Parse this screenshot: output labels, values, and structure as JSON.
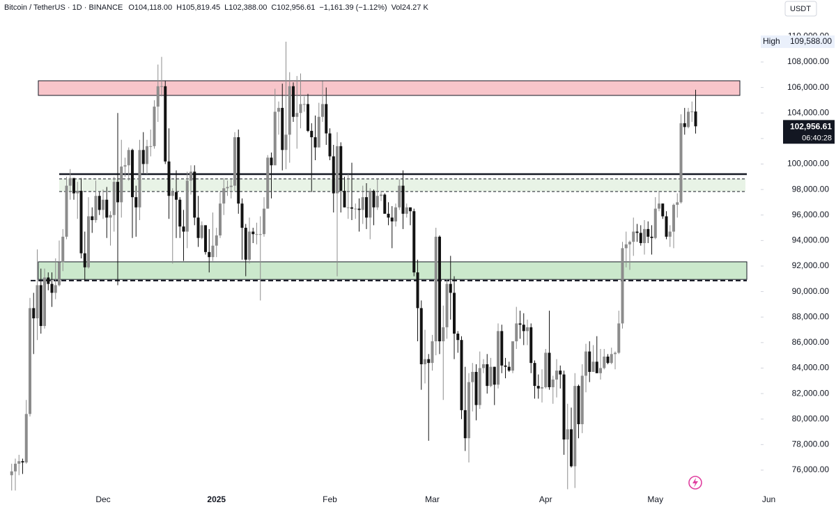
{
  "chart_data": {
    "type": "candlestick",
    "header": [
      "Bitcoin / TetherUS · 1D · BINANCE",
      "O104,118.00",
      "H105,819.45",
      "L102,388.00",
      "C102,956.61",
      "−1,161.39 (−1.12%)",
      "Vol24.27 K"
    ],
    "currency": "USDT",
    "up_color": "#8c8c8c",
    "down_color": "#131313",
    "ylim": [
      74360,
      112860
    ],
    "yticks": [
      {
        "value": 76000,
        "label": "76,000.00"
      },
      {
        "value": 78000,
        "label": "78,000.00"
      },
      {
        "value": 80000,
        "label": "80,000.00"
      },
      {
        "value": 82000,
        "label": "82,000.00"
      },
      {
        "value": 84000,
        "label": "84,000.00"
      },
      {
        "value": 86000,
        "label": "86,000.00"
      },
      {
        "value": 88000,
        "label": "88,000.00"
      },
      {
        "value": 90000,
        "label": "90,000.00"
      },
      {
        "value": 92000,
        "label": "92,000.00"
      },
      {
        "value": 94000,
        "label": "94,000.00"
      },
      {
        "value": 96000,
        "label": "96,000.00"
      },
      {
        "value": 98000,
        "label": "98,000.00"
      },
      {
        "value": 100000,
        "label": "100,000.00"
      },
      {
        "value": 102000,
        "label": "102,000.00"
      },
      {
        "value": 104000,
        "label": "104,000.00"
      },
      {
        "value": 106000,
        "label": "106,000.00"
      },
      {
        "value": 108000,
        "label": "108,000.00"
      },
      {
        "value": 110000,
        "label": "110,000.00"
      }
    ],
    "high_marker": {
      "label": "High",
      "value": 109588,
      "value_label": "109,588.00"
    },
    "last_price": {
      "value": 102956.61,
      "value_label": "102,956.61",
      "countdown": "06:40:28"
    },
    "zones": [
      {
        "low": 105379,
        "high": 106526,
        "color": "#f8c5ca"
      },
      {
        "low": 97840,
        "high": 98830,
        "color": "#e8f3e6"
      },
      {
        "low": 90950,
        "high": 92330,
        "color": "#cbe8cc"
      }
    ],
    "levels": [
      {
        "value": 99210,
        "style": "solid"
      },
      {
        "value": 98830,
        "style": "dashed"
      },
      {
        "value": 97840,
        "style": "dashed"
      },
      {
        "value": 90856,
        "style": "dashed"
      }
    ],
    "categories": [
      null,
      null,
      null,
      null,
      null,
      null,
      null,
      null,
      null,
      null,
      null,
      null,
      null,
      null,
      null,
      null,
      null,
      null,
      null,
      null,
      null,
      null,
      null,
      null,
      null,
      "Dec",
      null,
      null,
      null,
      null,
      null,
      null,
      null,
      null,
      null,
      null,
      null,
      null,
      null,
      null,
      null,
      null,
      null,
      null,
      null,
      null,
      null,
      null,
      null,
      null,
      null,
      null,
      null,
      null,
      null,
      null,
      "2025",
      null,
      null,
      null,
      null,
      null,
      null,
      null,
      null,
      null,
      null,
      null,
      null,
      null,
      null,
      null,
      null,
      null,
      null,
      null,
      null,
      null,
      null,
      null,
      null,
      null,
      null,
      null,
      null,
      null,
      null,
      "Feb",
      null,
      null,
      null,
      null,
      null,
      null,
      null,
      null,
      null,
      null,
      null,
      null,
      null,
      null,
      null,
      null,
      null,
      null,
      null,
      null,
      null,
      null,
      null,
      null,
      null,
      null,
      null,
      "Mar",
      null,
      null,
      null,
      null,
      null,
      null,
      null,
      null,
      null,
      null,
      null,
      null,
      null,
      null,
      null,
      null,
      null,
      null,
      null,
      null,
      null,
      null,
      null,
      null,
      null,
      null,
      null,
      null,
      null,
      null,
      "Apr",
      null,
      null,
      null,
      null,
      null,
      null,
      null,
      null,
      null,
      null,
      null,
      null,
      null,
      null,
      null,
      null,
      null,
      null,
      null,
      null,
      null,
      null,
      null,
      null,
      null,
      null,
      null,
      null,
      null,
      "May",
      null,
      null,
      null,
      null,
      null,
      null,
      null,
      null,
      null,
      null,
      null,
      null,
      null,
      null,
      null,
      null,
      null,
      null,
      null,
      null,
      null,
      null,
      null,
      null,
      null,
      null,
      null,
      null,
      null,
      null,
      "Jun"
    ],
    "open": [
      75600,
      75900,
      76500,
      76700,
      76600,
      80400,
      88700,
      87900,
      90500,
      87300,
      91100,
      90600,
      89900,
      90500,
      92300,
      94300,
      98300,
      98900,
      97700,
      97900,
      93000,
      91900,
      95900,
      95600,
      97500,
      96400,
      97200,
      95800,
      96000,
      98600,
      97000,
      99800,
      99900,
      101100,
      97400,
      96600,
      101100,
      100000,
      101400,
      101400,
      104500,
      106100,
      106100,
      100200,
      97500,
      97800,
      97200,
      95100,
      94700,
      98700,
      99400,
      95800,
      94200,
      95200,
      93100,
      92700,
      93600,
      94400,
      96900,
      98100,
      98200,
      98300,
      102100,
      96900,
      95000,
      92500,
      94700,
      94500,
      94500,
      94500,
      96500,
      100500,
      99900,
      104100,
      104400,
      101100,
      102300,
      106100,
      103700,
      104000,
      104700,
      104700,
      102600,
      102100,
      101300,
      103700,
      104700,
      102400,
      100600,
      97700,
      101400,
      97900,
      96600,
      96600,
      96500,
      96500,
      96400,
      97400,
      95800,
      97900,
      96600,
      97500,
      97600,
      96100,
      95800,
      95500,
      96600,
      98300,
      96100,
      96600,
      96300,
      91500,
      88700,
      84300,
      84700,
      84400,
      86100,
      94300,
      86100,
      87200,
      90600,
      89900,
      86700,
      86200,
      80700,
      78500,
      82900,
      83700,
      81100,
      84000,
      84300,
      82600,
      84100,
      82700,
      86900,
      84200,
      84100,
      83800,
      86100,
      87500,
      87400,
      86900,
      87200,
      84400,
      82600,
      82400,
      82500,
      85200,
      82500,
      83100,
      83800,
      83500,
      78400,
      79200,
      76300,
      82600,
      79600,
      83400,
      85300,
      83700,
      84500,
      83600,
      84000,
      84900,
      84400,
      85100,
      85200,
      87500,
      93400,
      93700,
      93900,
      94700,
      94600,
      93800,
      94900,
      94300,
      94200,
      96500,
      96900,
      95900,
      94300,
      94700,
      96800,
      97000,
      103200,
      102900,
      104100,
      104118,
      null,
      null,
      null,
      null,
      null,
      null,
      null,
      null,
      null,
      null,
      null,
      null,
      null,
      null,
      null,
      null,
      null,
      null,
      null,
      null
    ],
    "high": [
      76500,
      76900,
      77200,
      76900,
      81500,
      89500,
      89900,
      93300,
      91800,
      91800,
      91500,
      91500,
      92600,
      94000,
      94900,
      99000,
      99600,
      98900,
      98600,
      98900,
      94700,
      97400,
      96600,
      98700,
      97800,
      98000,
      98200,
      96300,
      99000,
      104000,
      101900,
      100500,
      101300,
      101200,
      98300,
      101900,
      102500,
      101900,
      102700,
      105000,
      107800,
      108400,
      106500,
      102800,
      98100,
      99500,
      97400,
      96400,
      99400,
      99900,
      99900,
      97500,
      95500,
      95200,
      94900,
      96200,
      95000,
      97800,
      98900,
      98700,
      98800,
      102500,
      102700,
      97300,
      95300,
      95800,
      95000,
      95400,
      95900,
      97400,
      100700,
      100900,
      105900,
      104900,
      106300,
      109588,
      107200,
      106400,
      106900,
      107100,
      105300,
      105500,
      103200,
      103800,
      104800,
      106500,
      106000,
      102800,
      101500,
      102500,
      101700,
      99000,
      99200,
      100100,
      96900,
      97300,
      98300,
      98500,
      98100,
      98000,
      98800,
      97900,
      97700,
      97000,
      96700,
      96900,
      98800,
      99500,
      96900,
      96600,
      96500,
      92500,
      89300,
      87000,
      85100,
      86600,
      95000,
      94400,
      88900,
      91000,
      92800,
      91200,
      86900,
      86500,
      84100,
      83600,
      84400,
      84300,
      85300,
      84700,
      85100,
      84800,
      84100,
      87500,
      87400,
      84800,
      84500,
      86100,
      88800,
      88500,
      88300,
      87800,
      87500,
      84600,
      83500,
      83900,
      85500,
      88500,
      83400,
      84700,
      84200,
      83800,
      81200,
      80900,
      83600,
      82700,
      84300,
      85900,
      86100,
      85800,
      86500,
      85500,
      85500,
      85100,
      85600,
      85300,
      88500,
      93900,
      94700,
      94000,
      95800,
      95300,
      95200,
      95600,
      95500,
      95200,
      97400,
      97900,
      96900,
      96300,
      95200,
      96900,
      97700,
      103900,
      104400,
      104400,
      104900,
      105819.45,
      null,
      null,
      null,
      null,
      null,
      null,
      null,
      null,
      null,
      null,
      null,
      null,
      null,
      null,
      null,
      null,
      null,
      null,
      null,
      null
    ],
    "low": [
      74400,
      74400,
      75600,
      75700,
      76500,
      80200,
      85100,
      86200,
      86700,
      87100,
      90100,
      88800,
      89400,
      90400,
      91600,
      94100,
      97200,
      97200,
      95700,
      92600,
      90800,
      91800,
      94600,
      95400,
      96000,
      95700,
      94200,
      93600,
      94700,
      90500,
      95800,
      99000,
      98700,
      94200,
      94300,
      95600,
      99300,
      99200,
      100600,
      101200,
      103300,
      105300,
      100000,
      95700,
      92200,
      94200,
      94200,
      92400,
      93400,
      97600,
      95200,
      93500,
      94100,
      92900,
      91500,
      92400,
      92700,
      94200,
      96000,
      97500,
      97300,
      97900,
      96100,
      92500,
      91200,
      92200,
      93800,
      93700,
      89300,
      94300,
      96500,
      97300,
      99900,
      102300,
      99500,
      99600,
      100100,
      103300,
      101200,
      102800,
      104100,
      102500,
      97800,
      100300,
      101300,
      103300,
      101500,
      100300,
      96200,
      91200,
      96200,
      96600,
      95700,
      95600,
      95700,
      94700,
      95300,
      94900,
      94100,
      95200,
      96400,
      97100,
      96100,
      95200,
      93400,
      95100,
      96400,
      94900,
      95800,
      95200,
      91200,
      86100,
      82300,
      82800,
      78300,
      83800,
      85000,
      85100,
      81500,
      86300,
      87800,
      84700,
      85200,
      80000,
      77500,
      76600,
      80600,
      79900,
      80800,
      83600,
      82000,
      82500,
      81100,
      82400,
      83600,
      83200,
      83700,
      83600,
      85500,
      86300,
      85800,
      85800,
      83600,
      81600,
      81600,
      81300,
      82400,
      82300,
      81200,
      81700,
      82400,
      77200,
      74500,
      76200,
      74600,
      78500,
      78900,
      82100,
      82900,
      83700,
      83600,
      83100,
      83900,
      84300,
      84300,
      83900,
      85100,
      87100,
      91900,
      91700,
      92800,
      93900,
      93600,
      92900,
      93800,
      92900,
      94100,
      96300,
      95700,
      94100,
      93500,
      93400,
      95800,
      96900,
      102300,
      102800,
      103300,
      102388,
      null,
      null,
      null,
      null,
      null,
      null,
      null,
      null,
      null,
      null,
      null,
      null,
      null,
      null,
      null,
      null,
      null,
      null,
      null,
      null
    ],
    "close": [
      75900,
      76500,
      76700,
      76600,
      80400,
      88700,
      87900,
      90500,
      87300,
      91100,
      90600,
      89900,
      90500,
      92300,
      94300,
      98300,
      98900,
      97700,
      97900,
      93000,
      91900,
      95900,
      95600,
      97500,
      96400,
      97200,
      95800,
      96000,
      98600,
      97000,
      99800,
      99900,
      101100,
      97400,
      96600,
      101100,
      100000,
      101400,
      101400,
      104500,
      106100,
      106100,
      100200,
      97500,
      97800,
      97200,
      95100,
      94700,
      98700,
      99400,
      95800,
      94200,
      95200,
      93100,
      92700,
      93600,
      94400,
      96900,
      98100,
      98200,
      98300,
      102100,
      96900,
      95000,
      92500,
      94700,
      94500,
      94500,
      94500,
      96500,
      100500,
      99900,
      104100,
      104400,
      101100,
      102300,
      106100,
      103700,
      104000,
      104700,
      104700,
      102600,
      102100,
      101300,
      103700,
      104700,
      102400,
      100600,
      97700,
      101400,
      97900,
      96600,
      96600,
      96500,
      96500,
      96400,
      97400,
      95800,
      97900,
      96600,
      97500,
      97600,
      96100,
      95800,
      95500,
      96600,
      98300,
      96100,
      96600,
      96300,
      91500,
      88700,
      84300,
      84700,
      84400,
      86100,
      94300,
      86100,
      87200,
      90600,
      89900,
      86700,
      86200,
      80700,
      78500,
      82900,
      83700,
      81100,
      84000,
      84300,
      82600,
      84100,
      82700,
      86900,
      84200,
      84100,
      83800,
      86100,
      87500,
      87400,
      86900,
      87200,
      84400,
      82600,
      82400,
      82500,
      85200,
      82500,
      83100,
      83800,
      83500,
      78400,
      79200,
      76300,
      82600,
      79600,
      83400,
      85300,
      83700,
      84500,
      83600,
      84000,
      84900,
      84400,
      85100,
      85200,
      87500,
      93400,
      93700,
      93900,
      94700,
      94600,
      93800,
      94900,
      94300,
      94200,
      96500,
      96900,
      95900,
      94300,
      94700,
      96800,
      97000,
      103200,
      102900,
      104100,
      104118,
      102956.61,
      null,
      null,
      null,
      null,
      null,
      null,
      null,
      null,
      null,
      null,
      null,
      null,
      null,
      null,
      null,
      null,
      null,
      null,
      null,
      null
    ]
  }
}
